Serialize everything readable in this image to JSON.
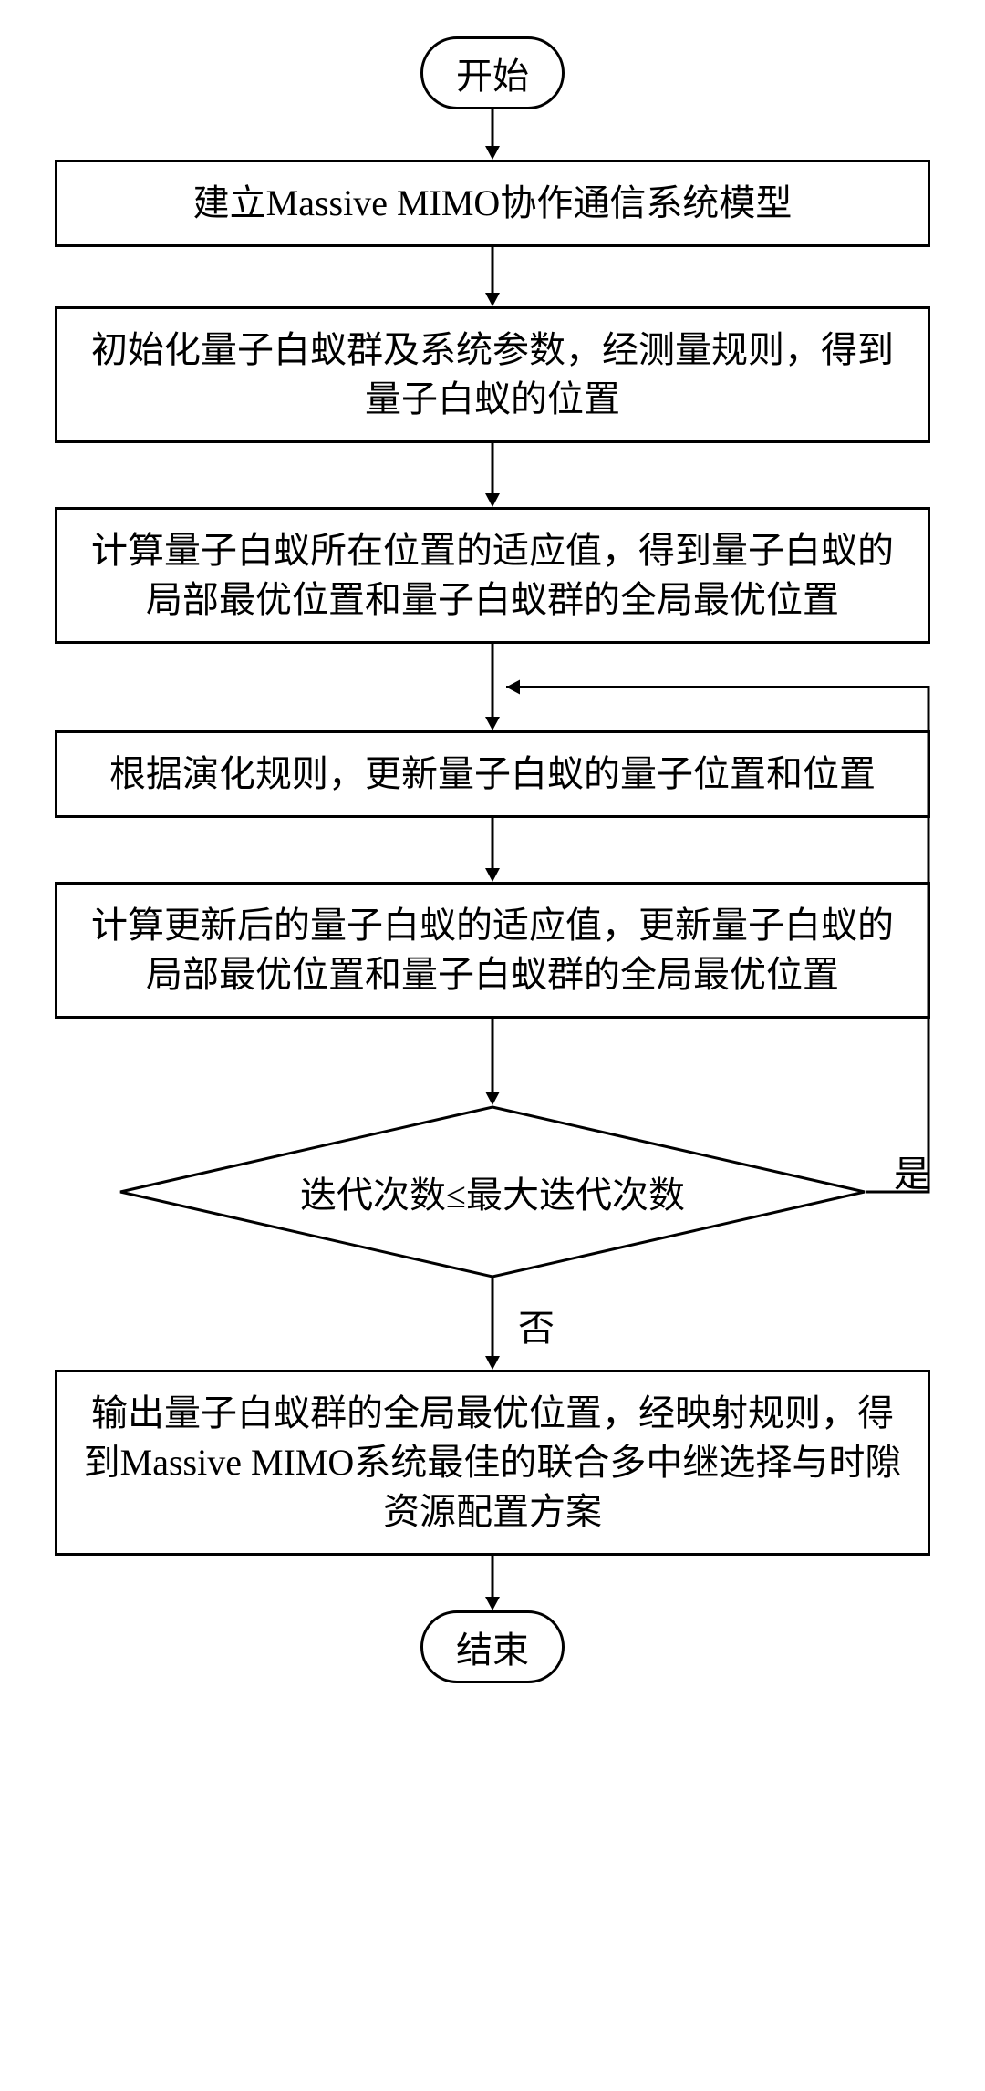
{
  "flow": {
    "start": "开始",
    "end": "结束",
    "step1": "建立Massive MIMO协作通信系统模型",
    "step2": "初始化量子白蚁群及系统参数，经测量规则，得到量子白蚁的位置",
    "step3": "计算量子白蚁所在位置的适应值，得到量子白蚁的局部最优位置和量子白蚁群的全局最优位置",
    "step4": "根据演化规则，更新量子白蚁的量子位置和位置",
    "step5": "计算更新后的量子白蚁的适应值，更新量子白蚁的局部最优位置和量子白蚁群的全局最优位置",
    "decision": "迭代次数≤最大迭代次数",
    "step6": "输出量子白蚁群的全局最优位置，经映射规则，得到Massive MIMO系统最佳的联合多中继选择与时隙资源配置方案",
    "yes_label": "是",
    "no_label": "否"
  },
  "style": {
    "stroke": "#000000",
    "stroke_width": 3,
    "font_size": 40,
    "arrow_len_short": 55,
    "arrow_len_med": 70,
    "background": "#ffffff"
  }
}
